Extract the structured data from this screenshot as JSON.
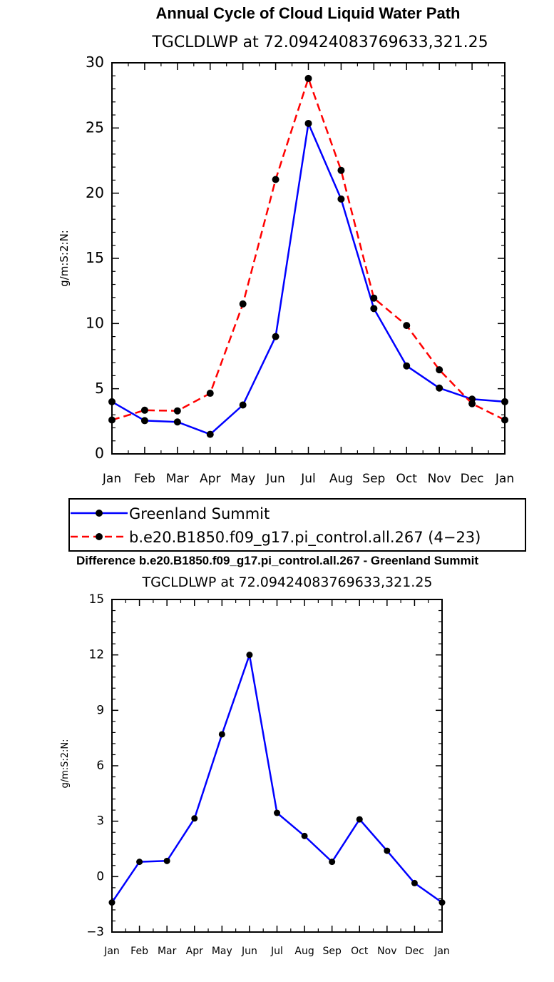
{
  "chart_data": [
    {
      "type": "line",
      "title": "Annual Cycle of Cloud Liquid Water Path",
      "subtitle": "TGCLDLWP  at  72.09424083769633,321.25",
      "xlabel": "",
      "ylabel": "g/m:S:2:N:",
      "categories": [
        "Jan",
        "Feb",
        "Mar",
        "Apr",
        "May",
        "Jun",
        "Jul",
        "Aug",
        "Sep",
        "Oct",
        "Nov",
        "Dec",
        "Jan"
      ],
      "ylim": [
        0,
        30
      ],
      "yticks": [
        "0",
        "5",
        "10",
        "15",
        "20",
        "25",
        "30"
      ],
      "series": [
        {
          "name": "Greenland Summit",
          "color": "#0000ff",
          "dash": "solid",
          "values": [
            4.0,
            2.55,
            2.45,
            1.5,
            3.75,
            9.0,
            25.35,
            19.55,
            11.15,
            6.75,
            5.05,
            4.2,
            4.0
          ]
        },
        {
          "name": "b.e20.B1850.f09_g17.pi_control.all.267 (4−23)",
          "color": "#ff0000",
          "dash": "dashed",
          "values": [
            2.6,
            3.35,
            3.3,
            4.65,
            11.5,
            21.05,
            28.8,
            21.75,
            11.95,
            9.85,
            6.45,
            3.85,
            2.6
          ]
        }
      ],
      "legend_position": "below"
    },
    {
      "type": "line",
      "title": "Difference b.e20.B1850.f09_g17.pi_control.all.267 - Greenland Summit",
      "subtitle": "TGCLDLWP  at  72.09424083769633,321.25",
      "xlabel": "",
      "ylabel": "g/m:S:2:N:",
      "categories": [
        "Jan",
        "Feb",
        "Mar",
        "Apr",
        "May",
        "Jun",
        "Jul",
        "Aug",
        "Sep",
        "Oct",
        "Nov",
        "Dec",
        "Jan"
      ],
      "ylim": [
        -3,
        15
      ],
      "yticks": [
        "−3",
        "0",
        "3",
        "6",
        "9",
        "12",
        "15"
      ],
      "series": [
        {
          "color": "#0000ff",
          "dash": "solid",
          "values": [
            -1.4,
            0.8,
            0.85,
            3.15,
            7.7,
            12.0,
            3.45,
            2.2,
            0.8,
            3.1,
            1.4,
            -0.35,
            -1.4
          ]
        }
      ]
    }
  ]
}
